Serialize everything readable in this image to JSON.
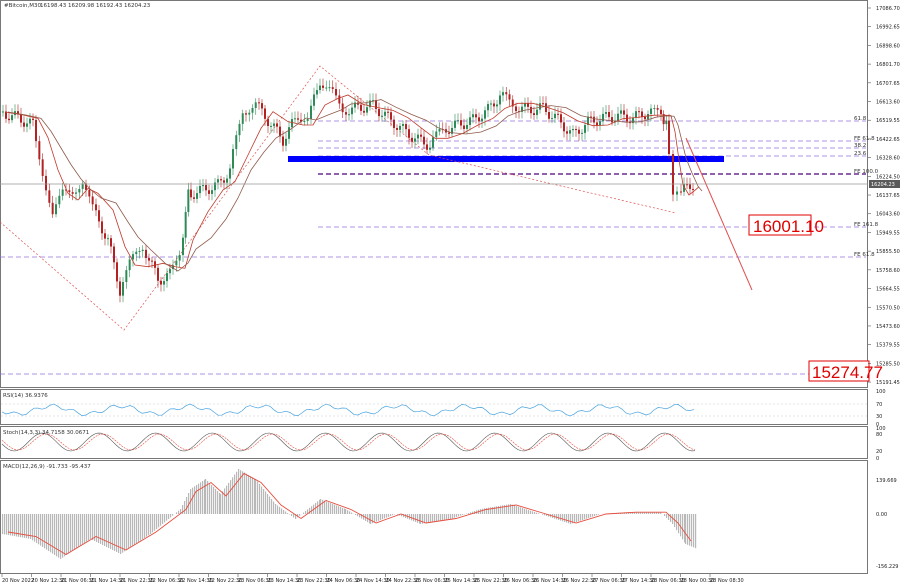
{
  "header": {
    "symbol": "#Bitcoin,M30",
    "ohlc": "16198.43 16209.98 16192.43 16204.23"
  },
  "colors": {
    "bull": "#2e8b57",
    "bear": "#b22222",
    "ma_fast": "#c0392b",
    "ma_slow": "#8e5a4a",
    "fib": "#9370db",
    "zone": "#0000ff",
    "target": "#e00000",
    "rsi": "#4aa3df",
    "stoch_signal": "#e74c3c",
    "macd_signal": "#e74c3c",
    "macd_hist": "#b8b8b8"
  },
  "price_scale": [
    "17086.70",
    "16992.65",
    "16898.60",
    "16801.70",
    "16707.65",
    "16613.60",
    "16519.55",
    "16422.65",
    "16328.60",
    "16224.50",
    "16137.65",
    "16043.60",
    "15949.55",
    "15855.50",
    "15758.60",
    "15664.55",
    "15570.50",
    "15473.60",
    "15379.55",
    "15285.50",
    "15191.45"
  ],
  "last_price": "16204.23",
  "fib_levels": [
    {
      "label": "61.8",
      "price": 16519.55
    },
    {
      "label": "FE 61.8",
      "price": 16437.0
    },
    {
      "label": "38.2",
      "price": 16400.0
    },
    {
      "label": "23.6",
      "price": 16357.0
    },
    {
      "label": "FE 100.0",
      "price": 16262.0
    },
    {
      "label": "FE 161.8",
      "price": 15982.0
    },
    {
      "label": "FE 61.8",
      "price": 15835.0
    },
    {
      "label": "",
      "price": 15240.0
    }
  ],
  "targets": {
    "first": "16001.10",
    "second": "15274.77"
  },
  "x_dates": [
    "20 Nov 2022",
    "20 Nov 12:30",
    "21 Nov 06:30",
    "21 Nov 14:30",
    "21 Nov 22:30",
    "22 Nov 06:30",
    "22 Nov 14:30",
    "22 Nov 22:30",
    "23 Nov 06:30",
    "23 Nov 14:30",
    "23 Nov 22:30",
    "24 Nov 06:30",
    "24 Nov 14:30",
    "24 Nov 22:30",
    "25 Nov 06:30",
    "25 Nov 14:30",
    "25 Nov 22:30",
    "26 Nov 06:30",
    "26 Nov 14:30",
    "26 Nov 22:30",
    "27 Nov 06:30",
    "27 Nov 14:30",
    "28 Nov 06:30",
    "28 Nov 00:30",
    "28 Nov 08:30"
  ],
  "rsi": {
    "title": "RSI(14) 36.9376",
    "scale": [
      "100",
      "70",
      "30",
      "0"
    ]
  },
  "stoch": {
    "title": "Stoch(14,3,3) 34.7158 30.0671",
    "scale": [
      "100",
      "80",
      "20",
      "0"
    ]
  },
  "macd": {
    "title": "MACD(12,26,9) -91.733 -95.437",
    "scale": [
      "139.669",
      "0.00",
      "-156.229"
    ]
  },
  "chart_data": {
    "type": "candlestick",
    "ylim": [
      15191.45,
      17086.7
    ],
    "last_price": 16204.23,
    "annotations": [
      {
        "text": "16001.10",
        "type": "target"
      },
      {
        "text": "15274.77",
        "type": "target"
      }
    ],
    "indicators": [
      "RSI(14) 36.9376",
      "Stoch(14,3,3) 34.7158 30.0671",
      "MACD(12,26,9) -91.733 -95.437"
    ]
  }
}
